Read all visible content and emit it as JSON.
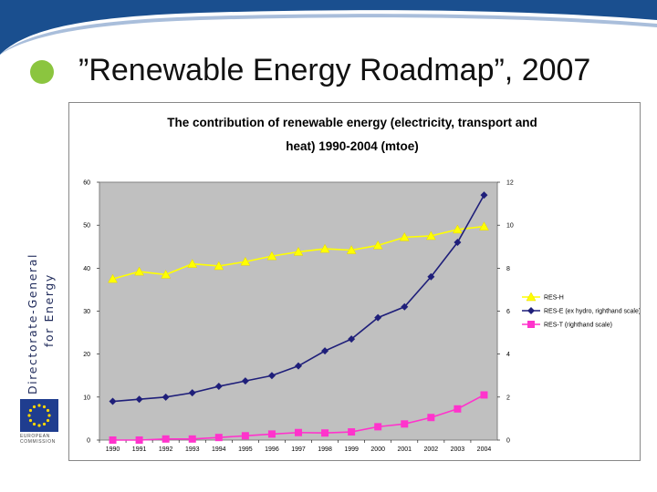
{
  "slide": {
    "title": "”Renewable Energy Roadmap”, 2007",
    "sidebar_line1": "Directorate-General",
    "sidebar_line2": "for Energy",
    "commission_line1": "EUROPEAN",
    "commission_line2": "COMMISSION",
    "accent_color": "#8bc53f",
    "band_color": "#1a4f8f"
  },
  "chart_data": {
    "type": "line",
    "title_line1": "The contribution of renewable energy (electricity, transport and",
    "title_line2": "heat) 1990-2004 (mtoe)",
    "x": [
      "1990",
      "1991",
      "1992",
      "1993",
      "1994",
      "1995",
      "1996",
      "1997",
      "1998",
      "1999",
      "2000",
      "2001",
      "2002",
      "2003",
      "2004"
    ],
    "ylim_left": [
      0,
      60
    ],
    "yticks_left": [
      0,
      10,
      20,
      30,
      40,
      50,
      60
    ],
    "ylim_right": [
      0,
      12
    ],
    "yticks_right": [
      0,
      2,
      4,
      6,
      8,
      10,
      12
    ],
    "plot_background": "#c0c0c0",
    "legend_position": "right",
    "series": [
      {
        "name": "RES-H",
        "axis": "left",
        "color": "#ffff00",
        "marker": "triangle",
        "values": [
          37.5,
          39.2,
          38.5,
          41.0,
          40.5,
          41.5,
          42.8,
          43.8,
          44.5,
          44.2,
          45.3,
          47.2,
          47.5,
          49.0,
          49.7
        ]
      },
      {
        "name": "RES-E (ex hydro, righthand scale)",
        "axis": "right",
        "color": "#1f1f7a",
        "marker": "diamond",
        "values": [
          1.8,
          1.9,
          2.0,
          2.2,
          2.5,
          2.75,
          3.0,
          3.45,
          4.15,
          4.7,
          5.7,
          6.2,
          7.6,
          9.2,
          11.4
        ]
      },
      {
        "name": "RES-T (righthand scale)",
        "axis": "right",
        "color": "#ff33cc",
        "marker": "square",
        "values": [
          0.0,
          0.0,
          0.05,
          0.05,
          0.12,
          0.2,
          0.28,
          0.35,
          0.33,
          0.38,
          0.62,
          0.75,
          1.05,
          1.45,
          2.1
        ]
      }
    ]
  }
}
